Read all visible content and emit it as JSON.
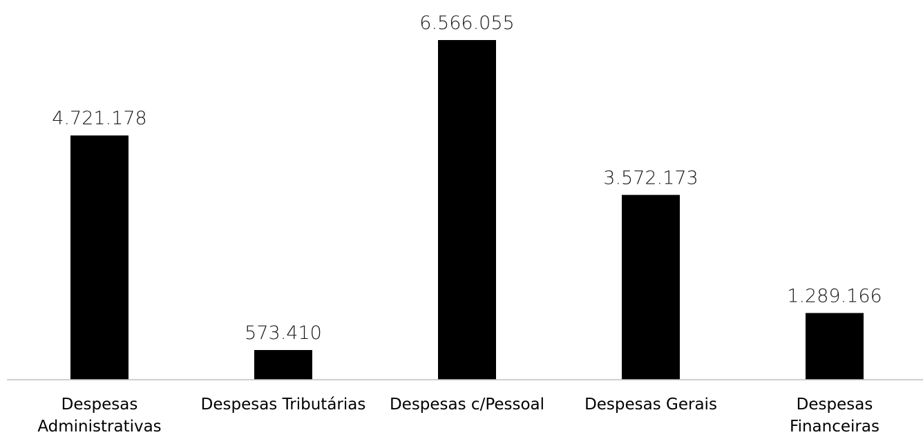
{
  "chart_data": {
    "type": "bar",
    "title": "",
    "xlabel": "",
    "ylabel": "",
    "categories": [
      [
        "Despesas",
        "Administrativas"
      ],
      [
        "Despesas Tributárias"
      ],
      [
        "Despesas c/Pessoal"
      ],
      [
        "Despesas Gerais"
      ],
      [
        "Despesas",
        "Financeiras"
      ]
    ],
    "values": [
      4721178,
      573410,
      6566055,
      3572173,
      1289166
    ],
    "value_labels": [
      "4.721.178",
      "573.410",
      "6.566.055",
      "3.572.173",
      "1.289.166"
    ],
    "ylim": [
      0,
      6566055
    ],
    "grid": false,
    "legend": "none",
    "bar_color": "#000000"
  }
}
